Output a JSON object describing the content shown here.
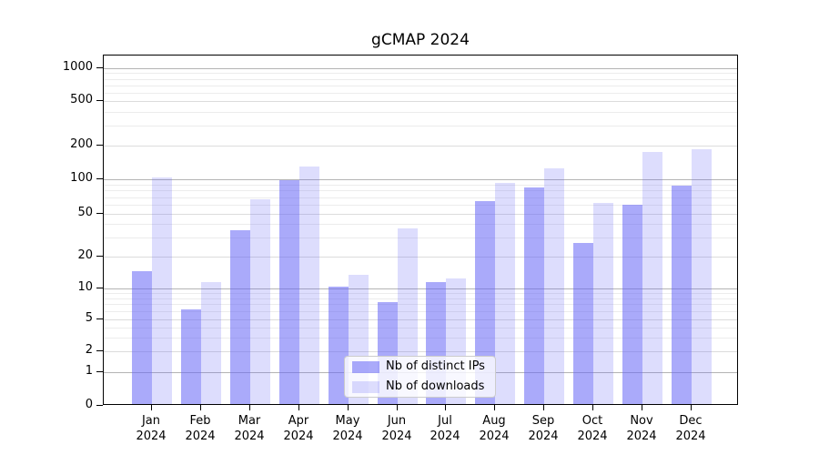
{
  "title": "gCMAP 2024",
  "chart_data": {
    "type": "bar",
    "title": "gCMAP 2024",
    "categories": [
      "Jan",
      "Feb",
      "Mar",
      "Apr",
      "May",
      "Jun",
      "Jul",
      "Aug",
      "Sep",
      "Oct",
      "Nov",
      "Dec"
    ],
    "category_year": "2024",
    "series": [
      {
        "name": "Nb of distinct IPs",
        "color": "rgba(100,100,245,0.55)",
        "values": [
          14,
          6,
          34,
          95,
          10,
          7,
          11,
          62,
          82,
          26,
          58,
          85
        ]
      },
      {
        "name": "Nb of downloads",
        "color": "rgba(100,100,245,0.22)",
        "values": [
          100,
          11,
          65,
          125,
          13,
          35,
          12,
          90,
          120,
          60,
          170,
          180
        ]
      }
    ],
    "yaxis": {
      "scale": "log-like",
      "ticks": [
        0,
        1,
        2,
        5,
        10,
        20,
        50,
        100,
        200,
        500,
        1000
      ],
      "range": [
        0,
        1000
      ]
    },
    "grid": true,
    "legend": {
      "position": "inside-bottom-center",
      "entries": [
        "Nb of distinct IPs",
        "Nb of downloads"
      ]
    },
    "colors": {
      "bar_dark": "rgba(100,100,245,0.55)",
      "bar_light": "rgba(100,100,245,0.22)",
      "grid_decade": "#b4b4b4",
      "grid_minor": "#ececec",
      "spine": "#000000"
    }
  }
}
